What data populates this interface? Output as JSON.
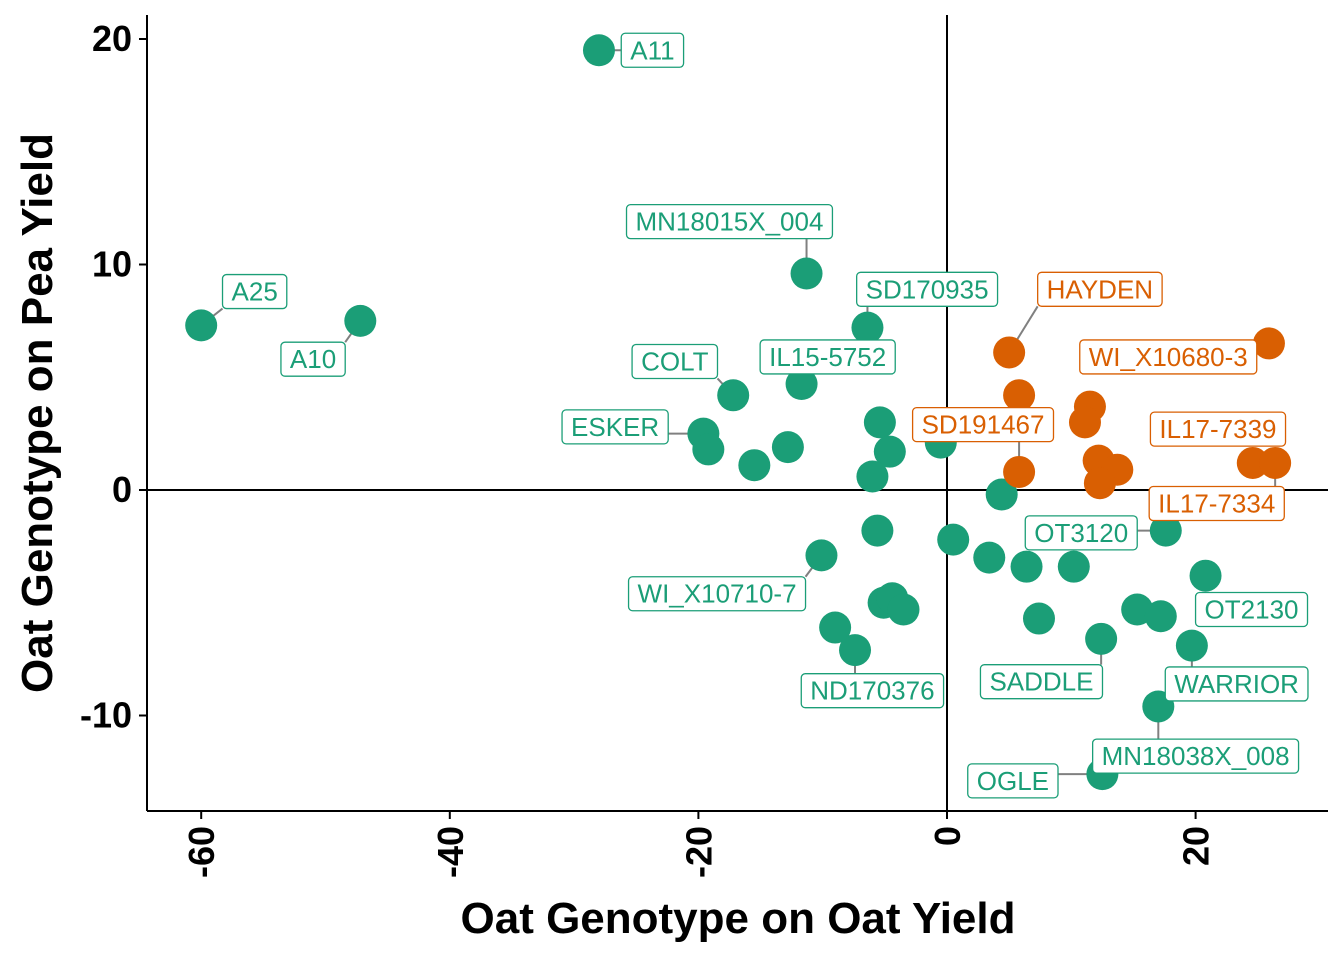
{
  "chart_data": {
    "type": "scatter",
    "xlabel": "Oat Genotype on Oat Yield",
    "ylabel": "Oat Genotype on Pea Yield",
    "xlim": [
      -65,
      30
    ],
    "ylim": [
      -14,
      21
    ],
    "xticks": [
      -60,
      -40,
      -20,
      0,
      20
    ],
    "yticks": [
      -10,
      0,
      10,
      20
    ],
    "reference_lines": {
      "x": 0,
      "y": 0
    },
    "grid": false,
    "legend": "none",
    "colors": {
      "green": "#1b9e77",
      "orange": "#d95f02"
    },
    "points": [
      {
        "x": -60.0,
        "y": 7.3,
        "group": "green",
        "label": "A25",
        "lx": -55.7,
        "ly": 8.8
      },
      {
        "x": -47.2,
        "y": 7.5,
        "group": "green",
        "label": "A10",
        "lx": -51.0,
        "ly": 5.8
      },
      {
        "x": -28.0,
        "y": 19.5,
        "group": "green",
        "label": "A11",
        "lx": -23.7,
        "ly": 19.5
      },
      {
        "x": -11.3,
        "y": 9.6,
        "group": "green",
        "label": "MN18015X_004",
        "lx": -17.5,
        "ly": 11.9
      },
      {
        "x": -6.4,
        "y": 7.2,
        "group": "green",
        "label": "SD170935",
        "lx": -1.6,
        "ly": 8.9
      },
      {
        "x": -11.7,
        "y": 4.7,
        "group": "green",
        "label": "IL15-5752",
        "lx": -9.6,
        "ly": 5.9
      },
      {
        "x": -17.2,
        "y": 4.2,
        "group": "green",
        "label": "COLT",
        "lx": -21.9,
        "ly": 5.7
      },
      {
        "x": -19.6,
        "y": 2.5,
        "group": "green",
        "label": "ESKER",
        "lx": -26.7,
        "ly": 2.8
      },
      {
        "x": -19.2,
        "y": 1.8,
        "group": "green"
      },
      {
        "x": -15.5,
        "y": 1.1,
        "group": "green"
      },
      {
        "x": -12.8,
        "y": 1.9,
        "group": "green"
      },
      {
        "x": -5.4,
        "y": 3.0,
        "group": "green"
      },
      {
        "x": -4.6,
        "y": 1.7,
        "group": "green"
      },
      {
        "x": -6.0,
        "y": 0.6,
        "group": "green"
      },
      {
        "x": -0.5,
        "y": 2.1,
        "group": "green"
      },
      {
        "x": 4.4,
        "y": -0.2,
        "group": "green"
      },
      {
        "x": 0.5,
        "y": -2.2,
        "group": "green"
      },
      {
        "x": 3.4,
        "y": -3.0,
        "group": "green"
      },
      {
        "x": -5.6,
        "y": -1.8,
        "group": "green"
      },
      {
        "x": -10.1,
        "y": -2.9,
        "group": "green",
        "label": "WI_X10710-7",
        "lx": -18.5,
        "ly": -4.6
      },
      {
        "x": -9.0,
        "y": -6.1,
        "group": "green"
      },
      {
        "x": -7.4,
        "y": -7.1,
        "group": "green",
        "label": "ND170376",
        "lx": -6.0,
        "ly": -8.9
      },
      {
        "x": -5.1,
        "y": -5.0,
        "group": "green"
      },
      {
        "x": -4.4,
        "y": -4.8,
        "group": "green"
      },
      {
        "x": -3.5,
        "y": -5.3,
        "group": "green"
      },
      {
        "x": 6.4,
        "y": -3.4,
        "group": "green"
      },
      {
        "x": 7.4,
        "y": -5.7,
        "group": "green"
      },
      {
        "x": 10.2,
        "y": -3.4,
        "group": "green"
      },
      {
        "x": 12.4,
        "y": -6.6,
        "group": "green",
        "label": "SADDLE",
        "lx": 7.6,
        "ly": -8.5
      },
      {
        "x": 15.3,
        "y": -5.3,
        "group": "green"
      },
      {
        "x": 17.2,
        "y": -5.6,
        "group": "green"
      },
      {
        "x": 17.6,
        "y": -1.8,
        "group": "green",
        "label": "OT3120",
        "lx": 10.8,
        "ly": -1.9
      },
      {
        "x": 20.8,
        "y": -3.8,
        "group": "green",
        "label": "OT2130",
        "lx": 24.5,
        "ly": -5.3
      },
      {
        "x": 19.7,
        "y": -6.9,
        "group": "green",
        "label": "WARRIOR",
        "lx": 23.3,
        "ly": -8.6
      },
      {
        "x": 17.0,
        "y": -9.6,
        "group": "green",
        "label": "MN18038X_008",
        "lx": 20.0,
        "ly": -11.8
      },
      {
        "x": 12.5,
        "y": -12.6,
        "group": "green",
        "label": "OGLE",
        "lx": 5.3,
        "ly": -12.9
      },
      {
        "x": 5.0,
        "y": 6.1,
        "group": "orange",
        "label": "HAYDEN",
        "lx": 12.3,
        "ly": 8.9
      },
      {
        "x": 25.9,
        "y": 6.5,
        "group": "orange",
        "label": "WI_X10680-3",
        "lx": 17.8,
        "ly": 5.9
      },
      {
        "x": 5.8,
        "y": 4.2,
        "group": "orange"
      },
      {
        "x": 11.5,
        "y": 3.7,
        "group": "orange"
      },
      {
        "x": 11.1,
        "y": 3.0,
        "group": "orange"
      },
      {
        "x": 5.8,
        "y": 0.8,
        "group": "orange",
        "label": "SD191467",
        "lx": 2.9,
        "ly": 2.9
      },
      {
        "x": 12.2,
        "y": 1.3,
        "group": "orange"
      },
      {
        "x": 13.7,
        "y": 0.9,
        "group": "orange"
      },
      {
        "x": 12.3,
        "y": 0.3,
        "group": "orange"
      },
      {
        "x": 24.6,
        "y": 1.2,
        "group": "orange",
        "label": "IL17-7339",
        "lx": 21.8,
        "ly": 2.7
      },
      {
        "x": 26.4,
        "y": 1.2,
        "group": "orange",
        "label": "IL17-7334",
        "lx": 21.7,
        "ly": -0.6
      }
    ]
  }
}
